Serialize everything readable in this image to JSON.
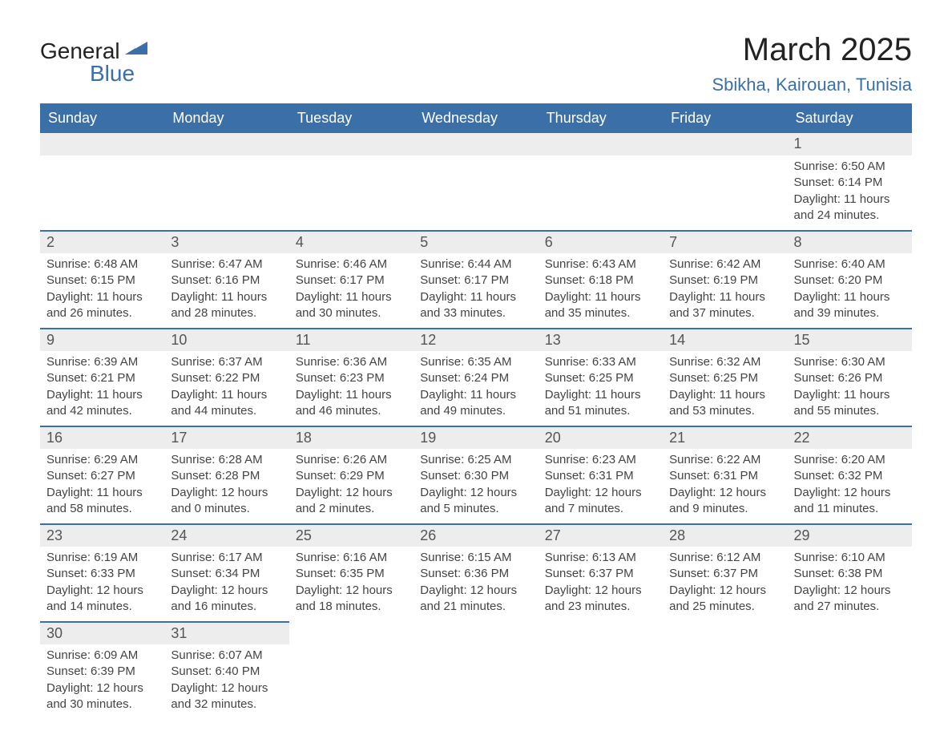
{
  "logo": {
    "text_primary": "General",
    "text_secondary": "Blue",
    "icon_color": "#3b6fa8"
  },
  "title": {
    "month_year": "March 2025",
    "location": "Sbikha, Kairouan, Tunisia"
  },
  "colors": {
    "header_bg": "#3b6fa8",
    "header_text": "#ffffff",
    "daynum_bg": "#ededed",
    "border_top": "#3b6fa8",
    "body_text": "#444444"
  },
  "weekdays": [
    "Sunday",
    "Monday",
    "Tuesday",
    "Wednesday",
    "Thursday",
    "Friday",
    "Saturday"
  ],
  "weeks": [
    [
      null,
      null,
      null,
      null,
      null,
      null,
      {
        "day": "1",
        "sunrise": "Sunrise: 6:50 AM",
        "sunset": "Sunset: 6:14 PM",
        "daylight1": "Daylight: 11 hours",
        "daylight2": "and 24 minutes."
      }
    ],
    [
      {
        "day": "2",
        "sunrise": "Sunrise: 6:48 AM",
        "sunset": "Sunset: 6:15 PM",
        "daylight1": "Daylight: 11 hours",
        "daylight2": "and 26 minutes."
      },
      {
        "day": "3",
        "sunrise": "Sunrise: 6:47 AM",
        "sunset": "Sunset: 6:16 PM",
        "daylight1": "Daylight: 11 hours",
        "daylight2": "and 28 minutes."
      },
      {
        "day": "4",
        "sunrise": "Sunrise: 6:46 AM",
        "sunset": "Sunset: 6:17 PM",
        "daylight1": "Daylight: 11 hours",
        "daylight2": "and 30 minutes."
      },
      {
        "day": "5",
        "sunrise": "Sunrise: 6:44 AM",
        "sunset": "Sunset: 6:17 PM",
        "daylight1": "Daylight: 11 hours",
        "daylight2": "and 33 minutes."
      },
      {
        "day": "6",
        "sunrise": "Sunrise: 6:43 AM",
        "sunset": "Sunset: 6:18 PM",
        "daylight1": "Daylight: 11 hours",
        "daylight2": "and 35 minutes."
      },
      {
        "day": "7",
        "sunrise": "Sunrise: 6:42 AM",
        "sunset": "Sunset: 6:19 PM",
        "daylight1": "Daylight: 11 hours",
        "daylight2": "and 37 minutes."
      },
      {
        "day": "8",
        "sunrise": "Sunrise: 6:40 AM",
        "sunset": "Sunset: 6:20 PM",
        "daylight1": "Daylight: 11 hours",
        "daylight2": "and 39 minutes."
      }
    ],
    [
      {
        "day": "9",
        "sunrise": "Sunrise: 6:39 AM",
        "sunset": "Sunset: 6:21 PM",
        "daylight1": "Daylight: 11 hours",
        "daylight2": "and 42 minutes."
      },
      {
        "day": "10",
        "sunrise": "Sunrise: 6:37 AM",
        "sunset": "Sunset: 6:22 PM",
        "daylight1": "Daylight: 11 hours",
        "daylight2": "and 44 minutes."
      },
      {
        "day": "11",
        "sunrise": "Sunrise: 6:36 AM",
        "sunset": "Sunset: 6:23 PM",
        "daylight1": "Daylight: 11 hours",
        "daylight2": "and 46 minutes."
      },
      {
        "day": "12",
        "sunrise": "Sunrise: 6:35 AM",
        "sunset": "Sunset: 6:24 PM",
        "daylight1": "Daylight: 11 hours",
        "daylight2": "and 49 minutes."
      },
      {
        "day": "13",
        "sunrise": "Sunrise: 6:33 AM",
        "sunset": "Sunset: 6:25 PM",
        "daylight1": "Daylight: 11 hours",
        "daylight2": "and 51 minutes."
      },
      {
        "day": "14",
        "sunrise": "Sunrise: 6:32 AM",
        "sunset": "Sunset: 6:25 PM",
        "daylight1": "Daylight: 11 hours",
        "daylight2": "and 53 minutes."
      },
      {
        "day": "15",
        "sunrise": "Sunrise: 6:30 AM",
        "sunset": "Sunset: 6:26 PM",
        "daylight1": "Daylight: 11 hours",
        "daylight2": "and 55 minutes."
      }
    ],
    [
      {
        "day": "16",
        "sunrise": "Sunrise: 6:29 AM",
        "sunset": "Sunset: 6:27 PM",
        "daylight1": "Daylight: 11 hours",
        "daylight2": "and 58 minutes."
      },
      {
        "day": "17",
        "sunrise": "Sunrise: 6:28 AM",
        "sunset": "Sunset: 6:28 PM",
        "daylight1": "Daylight: 12 hours",
        "daylight2": "and 0 minutes."
      },
      {
        "day": "18",
        "sunrise": "Sunrise: 6:26 AM",
        "sunset": "Sunset: 6:29 PM",
        "daylight1": "Daylight: 12 hours",
        "daylight2": "and 2 minutes."
      },
      {
        "day": "19",
        "sunrise": "Sunrise: 6:25 AM",
        "sunset": "Sunset: 6:30 PM",
        "daylight1": "Daylight: 12 hours",
        "daylight2": "and 5 minutes."
      },
      {
        "day": "20",
        "sunrise": "Sunrise: 6:23 AM",
        "sunset": "Sunset: 6:31 PM",
        "daylight1": "Daylight: 12 hours",
        "daylight2": "and 7 minutes."
      },
      {
        "day": "21",
        "sunrise": "Sunrise: 6:22 AM",
        "sunset": "Sunset: 6:31 PM",
        "daylight1": "Daylight: 12 hours",
        "daylight2": "and 9 minutes."
      },
      {
        "day": "22",
        "sunrise": "Sunrise: 6:20 AM",
        "sunset": "Sunset: 6:32 PM",
        "daylight1": "Daylight: 12 hours",
        "daylight2": "and 11 minutes."
      }
    ],
    [
      {
        "day": "23",
        "sunrise": "Sunrise: 6:19 AM",
        "sunset": "Sunset: 6:33 PM",
        "daylight1": "Daylight: 12 hours",
        "daylight2": "and 14 minutes."
      },
      {
        "day": "24",
        "sunrise": "Sunrise: 6:17 AM",
        "sunset": "Sunset: 6:34 PM",
        "daylight1": "Daylight: 12 hours",
        "daylight2": "and 16 minutes."
      },
      {
        "day": "25",
        "sunrise": "Sunrise: 6:16 AM",
        "sunset": "Sunset: 6:35 PM",
        "daylight1": "Daylight: 12 hours",
        "daylight2": "and 18 minutes."
      },
      {
        "day": "26",
        "sunrise": "Sunrise: 6:15 AM",
        "sunset": "Sunset: 6:36 PM",
        "daylight1": "Daylight: 12 hours",
        "daylight2": "and 21 minutes."
      },
      {
        "day": "27",
        "sunrise": "Sunrise: 6:13 AM",
        "sunset": "Sunset: 6:37 PM",
        "daylight1": "Daylight: 12 hours",
        "daylight2": "and 23 minutes."
      },
      {
        "day": "28",
        "sunrise": "Sunrise: 6:12 AM",
        "sunset": "Sunset: 6:37 PM",
        "daylight1": "Daylight: 12 hours",
        "daylight2": "and 25 minutes."
      },
      {
        "day": "29",
        "sunrise": "Sunrise: 6:10 AM",
        "sunset": "Sunset: 6:38 PM",
        "daylight1": "Daylight: 12 hours",
        "daylight2": "and 27 minutes."
      }
    ],
    [
      {
        "day": "30",
        "sunrise": "Sunrise: 6:09 AM",
        "sunset": "Sunset: 6:39 PM",
        "daylight1": "Daylight: 12 hours",
        "daylight2": "and 30 minutes."
      },
      {
        "day": "31",
        "sunrise": "Sunrise: 6:07 AM",
        "sunset": "Sunset: 6:40 PM",
        "daylight1": "Daylight: 12 hours",
        "daylight2": "and 32 minutes."
      },
      null,
      null,
      null,
      null,
      null
    ]
  ]
}
